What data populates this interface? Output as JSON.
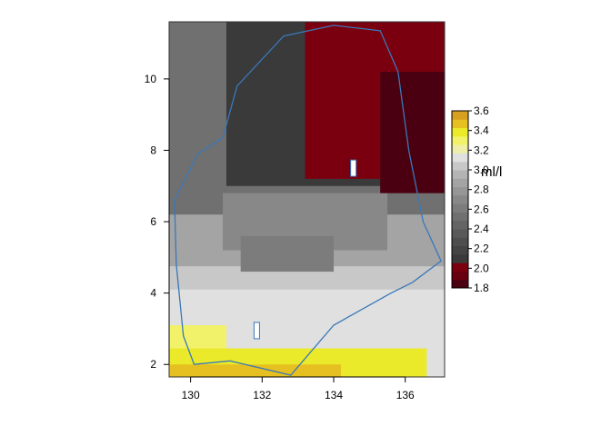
{
  "chart_data": {
    "type": "heatmap",
    "title": "",
    "xlabel": "",
    "ylabel": "",
    "xlim": [
      129.4,
      137.1
    ],
    "ylim": [
      1.65,
      11.6
    ],
    "x_ticks": [
      "130",
      "132",
      "134",
      "136"
    ],
    "y_ticks": [
      "2",
      "4",
      "6",
      "8",
      "10"
    ],
    "legend": {
      "unit": "ml/l",
      "range": [
        1.8,
        3.6
      ],
      "tick_labels": [
        "1.8",
        "2.0",
        "2.2",
        "2.4",
        "2.6",
        "2.8",
        "3.0",
        "3.2",
        "3.4",
        "3.6"
      ],
      "colors": [
        "#4a0010",
        "#680010",
        "#7a0010",
        "#3a3a3a",
        "#444444",
        "#4e4e4e",
        "#595959",
        "#646464",
        "#707070",
        "#7c7c7c",
        "#888888",
        "#969696",
        "#a4a4a4",
        "#b4b4b4",
        "#c8c8c8",
        "#e0e0e0",
        "#eeeeaa",
        "#f2f26a",
        "#eaea2a",
        "#e6c020",
        "#d7a020"
      ],
      "placement": "right"
    },
    "regions": [
      {
        "x0": 129.4,
        "x1": 137.1,
        "y0": 1.65,
        "y1": 11.6,
        "value": 2.55
      },
      {
        "x0": 129.4,
        "x1": 137.1,
        "y0": 1.65,
        "y1": 6.2,
        "value": 2.85
      },
      {
        "x0": 129.4,
        "x1": 137.1,
        "y0": 1.65,
        "y1": 4.75,
        "value": 3.05
      },
      {
        "x0": 129.4,
        "x1": 137.1,
        "y0": 1.65,
        "y1": 4.1,
        "value": 3.15
      },
      {
        "x0": 129.4,
        "x1": 131.0,
        "y0": 1.65,
        "y1": 3.1,
        "value": 3.3
      },
      {
        "x0": 129.4,
        "x1": 136.6,
        "y0": 1.65,
        "y1": 2.45,
        "value": 3.4
      },
      {
        "x0": 129.4,
        "x1": 134.2,
        "y0": 1.65,
        "y1": 2.0,
        "value": 3.5
      },
      {
        "x0": 130.9,
        "x1": 135.5,
        "y0": 5.2,
        "y1": 6.8,
        "value": 2.7
      },
      {
        "x0": 131.4,
        "x1": 134.0,
        "y0": 4.6,
        "y1": 5.6,
        "value": 2.65
      },
      {
        "x0": 131.0,
        "x1": 137.1,
        "y0": 7.0,
        "y1": 11.6,
        "value": 2.1
      },
      {
        "x0": 133.2,
        "x1": 137.1,
        "y0": 7.2,
        "y1": 11.6,
        "value": 2.0
      },
      {
        "x0": 135.3,
        "x1": 137.1,
        "y0": 6.8,
        "y1": 10.2,
        "value": 1.85
      }
    ],
    "islands": [
      {
        "x": 134.55,
        "y": 7.5,
        "label": ""
      },
      {
        "x": 131.85,
        "y": 2.95,
        "label": ""
      }
    ],
    "boundary": [
      [
        129.55,
        6.6
      ],
      [
        130.2,
        7.9
      ],
      [
        130.9,
        8.35
      ],
      [
        131.3,
        9.8
      ],
      [
        132.6,
        11.2
      ],
      [
        134.0,
        11.5
      ],
      [
        135.3,
        11.35
      ],
      [
        135.8,
        10.2
      ],
      [
        136.1,
        8.0
      ],
      [
        136.5,
        6.0
      ],
      [
        137.0,
        4.9
      ],
      [
        136.2,
        4.3
      ],
      [
        135.6,
        4.0
      ],
      [
        134.0,
        3.1
      ],
      [
        132.8,
        1.7
      ],
      [
        131.1,
        2.1
      ],
      [
        130.1,
        2.0
      ],
      [
        129.8,
        2.8
      ],
      [
        129.6,
        4.8
      ],
      [
        129.55,
        6.6
      ]
    ]
  }
}
